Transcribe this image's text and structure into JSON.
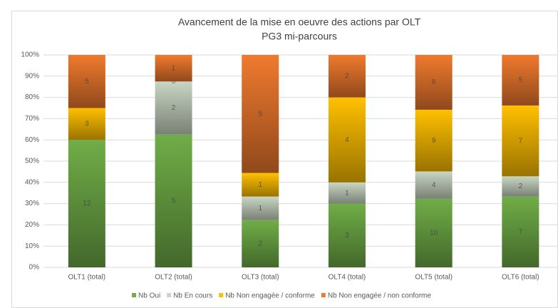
{
  "chart_data": {
    "type": "bar",
    "stacking": "percent",
    "title": "Avancement de la mise en oeuvre des actions par OLT",
    "subtitle": "PG3 mi-parcours",
    "categories": [
      "OLT1 (total)",
      "OLT2 (total)",
      "OLT3 (total)",
      "OLT4 (total)",
      "OLT5 (total)",
      "OLT6 (total)"
    ],
    "series": [
      {
        "name": "Nb Oui",
        "color": "#70ad47",
        "values": [
          12,
          5,
          2,
          3,
          10,
          7
        ]
      },
      {
        "name": "Nb En cours",
        "color": "#c9d6c3",
        "values": [
          null,
          2,
          1,
          1,
          4,
          2
        ]
      },
      {
        "name": "Nb Non engagée / conforme",
        "color": "#ffc000",
        "values": [
          3,
          0,
          1,
          4,
          9,
          7
        ]
      },
      {
        "name": "Nb Non engagée / non conforme",
        "color": "#f07a2e",
        "values": [
          5,
          1,
          5,
          2,
          8,
          5
        ]
      }
    ],
    "ylim": [
      0,
      100
    ],
    "yticks": [
      {
        "value": 0,
        "label": "0%"
      },
      {
        "value": 10,
        "label": "10%"
      },
      {
        "value": 20,
        "label": "20%"
      },
      {
        "value": 30,
        "label": "30%"
      },
      {
        "value": 40,
        "label": "40%"
      },
      {
        "value": 50,
        "label": "50%"
      },
      {
        "value": 60,
        "label": "60%"
      },
      {
        "value": 70,
        "label": "70%"
      },
      {
        "value": 80,
        "label": "80%"
      },
      {
        "value": 90,
        "label": "90%"
      },
      {
        "value": 100,
        "label": "100%"
      }
    ],
    "grid": true,
    "legend": "bottom"
  }
}
